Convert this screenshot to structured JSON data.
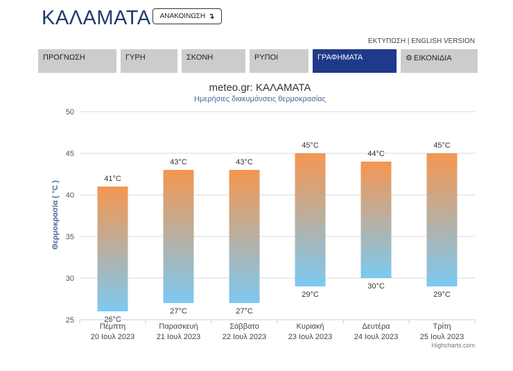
{
  "header": {
    "city_title": "ΚΑΛΑΜΑΤΑ",
    "announce_label": "ΑΝΑΚΟΙΝΩΣΗ",
    "announce_icon": "arrow-down-icon"
  },
  "links": {
    "print": "ΕΚΤΥΠΩΣΗ",
    "separator": "|",
    "english": "ENGLISH VERSION"
  },
  "tabs": [
    {
      "label": "ΠΡΟΓΝΩΣΗ",
      "active": false
    },
    {
      "label": "ΓΥΡΗ",
      "active": false
    },
    {
      "label": "ΣΚΟΝΗ",
      "active": false
    },
    {
      "label": "ΡΥΠΟΙ",
      "active": false
    },
    {
      "label": "ΓΡΑΦΗΜΑΤΑ",
      "active": true
    },
    {
      "label": "ΕΙΚΟΝΙΔΙΑ",
      "active": false,
      "icon": "gear-icon"
    }
  ],
  "colors": {
    "brand_blue": "#1f3a6e",
    "active_tab": "#1f3a8a",
    "inactive_tab": "#cccccc",
    "bar_top": "#f59650",
    "bar_bottom": "#7cc9f2"
  },
  "chart_data": {
    "type": "bar",
    "title": "meteo.gr: ΚΑΛΑΜΑΤΑ",
    "subtitle": "Ημερήσιες διακυμάνσεις θερμοκρασίας",
    "ylabel": "Θερμοκρασία ( °C )",
    "ylim": [
      25,
      50
    ],
    "yticks": [
      25,
      30,
      35,
      40,
      45,
      50
    ],
    "grid": true,
    "categories": [
      {
        "day": "Πέμπτη",
        "date": "20 Ιουλ 2023"
      },
      {
        "day": "Παρασκευή",
        "date": "21 Ιουλ 2023"
      },
      {
        "day": "Σάββατο",
        "date": "22 Ιουλ 2023"
      },
      {
        "day": "Κυριακή",
        "date": "23 Ιουλ 2023"
      },
      {
        "day": "Δευτέρα",
        "date": "24 Ιουλ 2023"
      },
      {
        "day": "Τρίτη",
        "date": "25 Ιουλ 2023"
      }
    ],
    "min": [
      26,
      27,
      27,
      29,
      30,
      29
    ],
    "max": [
      41,
      43,
      43,
      45,
      44,
      45
    ],
    "unit": "°C",
    "credits": "Highcharts.com"
  }
}
